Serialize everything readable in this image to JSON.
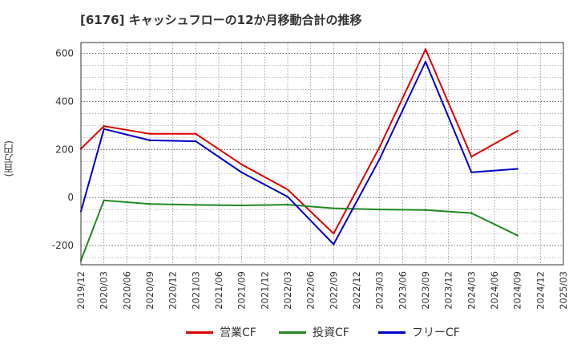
{
  "chart_data": {
    "type": "line",
    "title": "[6176]  キャッシュフローの12か月移動合計の推移",
    "ylabel": "(百万円)",
    "xlabel": "",
    "ylim": [
      -280,
      645
    ],
    "yticks": [
      -200,
      0,
      200,
      400,
      600
    ],
    "grid": true,
    "legend_position": "bottom",
    "categories": [
      "2019/12",
      "2020/03",
      "2020/06",
      "2020/09",
      "2020/12",
      "2021/03",
      "2021/06",
      "2021/09",
      "2021/12",
      "2022/03",
      "2022/06",
      "2022/09",
      "2022/12",
      "2023/03",
      "2023/06",
      "2023/09",
      "2023/12",
      "2024/03",
      "2024/06",
      "2024/09",
      "2024/12",
      "2025/03"
    ],
    "series": [
      {
        "name": "営業CF",
        "color": "#dd0000",
        "values": [
          203,
          297,
          null,
          265,
          null,
          265,
          null,
          137,
          null,
          33,
          null,
          -150,
          null,
          210,
          null,
          617,
          null,
          170,
          null,
          277,
          null,
          null
        ]
      },
      {
        "name": "投資CF",
        "color": "#228822",
        "values": [
          -262,
          -12,
          null,
          -27,
          null,
          -31,
          null,
          -33,
          null,
          -30,
          null,
          -45,
          null,
          -50,
          null,
          -52,
          null,
          -65,
          null,
          -158,
          null,
          null
        ]
      },
      {
        "name": "フリーCF",
        "color": "#0000cc",
        "values": [
          -58,
          285,
          null,
          238,
          null,
          234,
          null,
          104,
          null,
          3,
          null,
          -195,
          null,
          160,
          null,
          565,
          null,
          105,
          null,
          119,
          null,
          null
        ]
      }
    ]
  }
}
